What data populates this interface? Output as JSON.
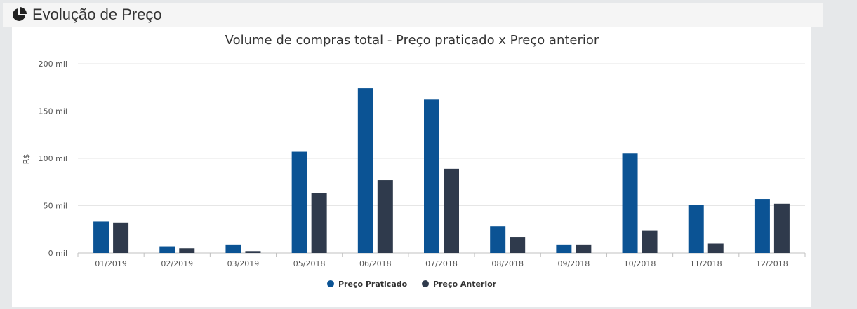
{
  "header": {
    "title": "Evolução de Preço",
    "icon": "pie-chart-icon"
  },
  "chart_data": {
    "type": "bar",
    "title": "Volume de compras total - Preço praticado x Preço anterior",
    "xlabel": "",
    "ylabel": "R$",
    "ylim": [
      0,
      200000
    ],
    "yticks": [
      {
        "value": 0,
        "label": "0 mil"
      },
      {
        "value": 50000,
        "label": "50 mil"
      },
      {
        "value": 100000,
        "label": "100 mil"
      },
      {
        "value": 150000,
        "label": "150 mil"
      },
      {
        "value": 200000,
        "label": "200 mil"
      }
    ],
    "grid": true,
    "legend_position": "bottom-center",
    "categories": [
      "01/2019",
      "02/2019",
      "03/2019",
      "05/2018",
      "06/2018",
      "07/2018",
      "08/2018",
      "09/2018",
      "10/2018",
      "11/2018",
      "12/2018"
    ],
    "series": [
      {
        "name": "Preço Praticado",
        "color": "#0b5394",
        "values": [
          33000,
          7000,
          9000,
          107000,
          174000,
          162000,
          28000,
          9000,
          105000,
          51000,
          57000
        ]
      },
      {
        "name": "Preço Anterior",
        "color": "#2f3a4c",
        "values": [
          32000,
          5000,
          2000,
          63000,
          77000,
          89000,
          17000,
          9000,
          24000,
          10000,
          52000
        ]
      }
    ]
  }
}
